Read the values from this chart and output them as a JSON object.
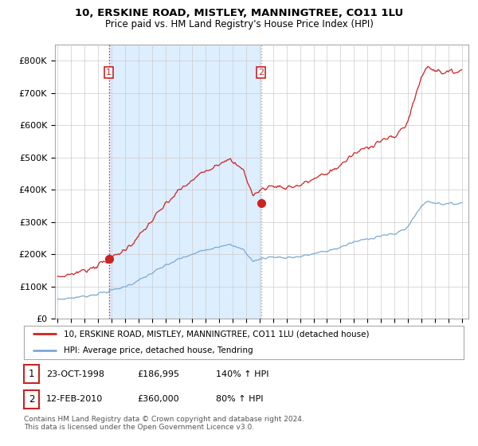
{
  "title": "10, ERSKINE ROAD, MISTLEY, MANNINGTREE, CO11 1LU",
  "subtitle": "Price paid vs. HM Land Registry's House Price Index (HPI)",
  "ylim": [
    0,
    850000
  ],
  "yticks": [
    0,
    100000,
    200000,
    300000,
    400000,
    500000,
    600000,
    700000,
    800000
  ],
  "ytick_labels": [
    "£0",
    "£100K",
    "£200K",
    "£300K",
    "£400K",
    "£500K",
    "£600K",
    "£700K",
    "£800K"
  ],
  "hpi_color": "#7aaad4",
  "price_color": "#cc2222",
  "sale1_year": 1998.8,
  "sale1_price": 186995,
  "sale1_label": "1",
  "sale1_date": "23-OCT-1998",
  "sale1_amount": "£186,995",
  "sale1_hpi": "140% ↑ HPI",
  "sale2_year": 2010.1,
  "sale2_price": 360000,
  "sale2_label": "2",
  "sale2_date": "12-FEB-2010",
  "sale2_amount": "£360,000",
  "sale2_hpi": "80% ↑ HPI",
  "legend_line1": "10, ERSKINE ROAD, MISTLEY, MANNINGTREE, CO11 1LU (detached house)",
  "legend_line2": "HPI: Average price, detached house, Tendring",
  "footnote": "Contains HM Land Registry data © Crown copyright and database right 2024.\nThis data is licensed under the Open Government Licence v3.0.",
  "background_color": "#ffffff",
  "grid_color": "#cccccc",
  "shade_color": "#ddeeff"
}
